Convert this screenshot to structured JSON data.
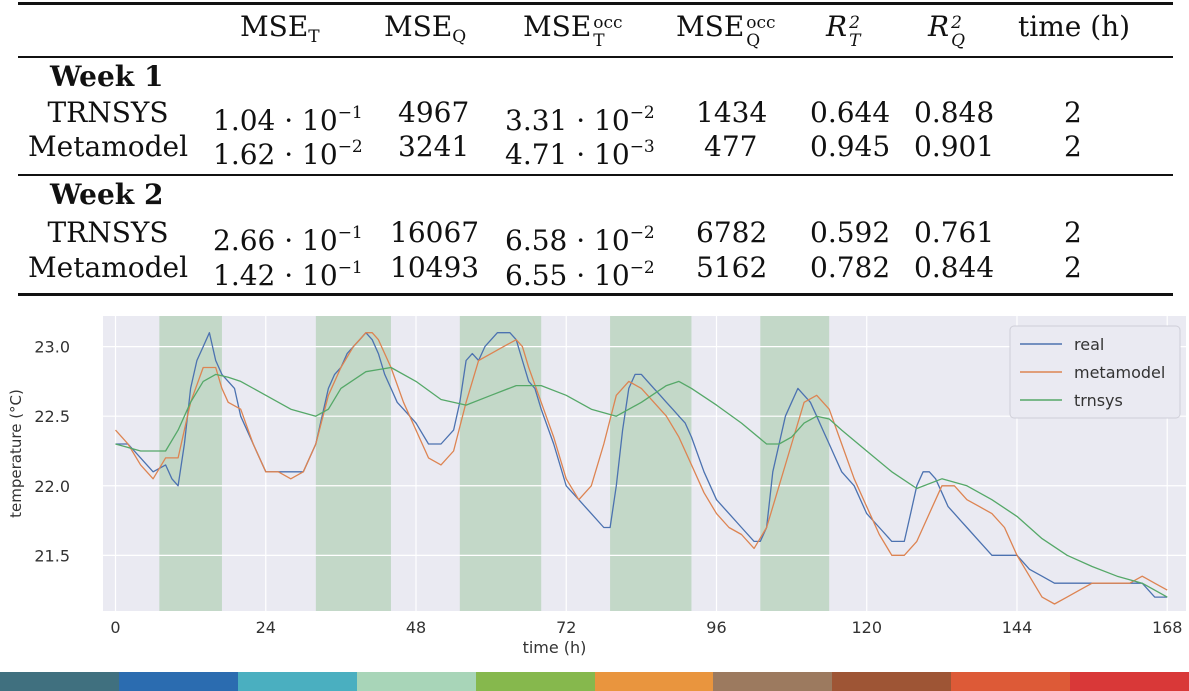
{
  "table": {
    "headers": [
      "MSE_T",
      "MSE_Q",
      "MSE_T^occ",
      "MSE_Q^occ",
      "R_T^2",
      "R_Q^2",
      "time (h)"
    ],
    "sections": [
      {
        "title": "Week 1",
        "rows": [
          {
            "label": "TRNSYS",
            "mse_t": "1.04 · 10",
            "mse_t_exp": "−1",
            "mse_q": "4967",
            "mse_t_occ": "3.31 · 10",
            "mse_t_occ_exp": "−2",
            "mse_q_occ": "1434",
            "r2_t": "0.644",
            "r2_q": "0.848",
            "time": "2"
          },
          {
            "label": "Metamodel",
            "mse_t": "1.62 · 10",
            "mse_t_exp": "−2",
            "mse_q": "3241",
            "mse_t_occ": "4.71 · 10",
            "mse_t_occ_exp": "−3",
            "mse_q_occ": "477",
            "r2_t": "0.945",
            "r2_q": "0.901",
            "time": "2"
          }
        ]
      },
      {
        "title": "Week 2",
        "rows": [
          {
            "label": "TRNSYS",
            "mse_t": "2.66 · 10",
            "mse_t_exp": "−1",
            "mse_q": "16067",
            "mse_t_occ": "6.58 · 10",
            "mse_t_occ_exp": "−2",
            "mse_q_occ": "6782",
            "r2_t": "0.592",
            "r2_q": "0.761",
            "time": "2"
          },
          {
            "label": "Metamodel",
            "mse_t": "1.42 · 10",
            "mse_t_exp": "−1",
            "mse_q": "10493",
            "mse_t_occ": "6.55 · 10",
            "mse_t_occ_exp": "−2",
            "mse_q_occ": "5162",
            "r2_t": "0.782",
            "r2_q": "0.844",
            "time": "2"
          }
        ]
      }
    ]
  },
  "chart_data": {
    "type": "line",
    "xlabel": "time (h)",
    "ylabel": "temperature (°C)",
    "xlim": [
      -2,
      171
    ],
    "ylim": [
      21.1,
      23.22
    ],
    "xticks": [
      0,
      24,
      48,
      72,
      96,
      120,
      144,
      168
    ],
    "yticks": [
      21.5,
      22.0,
      22.5,
      23.0
    ],
    "ytick_labels": [
      "21.5",
      "22.0",
      "22.5",
      "23.0"
    ],
    "grid": true,
    "legend_position": "top-right",
    "occupied_periods": [
      [
        7,
        17
      ],
      [
        32,
        44
      ],
      [
        55,
        68
      ],
      [
        79,
        92
      ],
      [
        103,
        114
      ]
    ],
    "colors": {
      "real": "#4c72b0",
      "metamodel": "#dd8452",
      "trnsys": "#55a868",
      "band": "#c3d8c8",
      "plot_bg": "#eaeaf2"
    },
    "series": [
      {
        "name": "real",
        "x": [
          0,
          2,
          4,
          6,
          8,
          9,
          10,
          11,
          12,
          13,
          14,
          15,
          16,
          17,
          18,
          19,
          20,
          22,
          24,
          26,
          28,
          30,
          32,
          33,
          34,
          35,
          36,
          37,
          38,
          39,
          40,
          41,
          42,
          43,
          44,
          45,
          46,
          48,
          50,
          52,
          54,
          55,
          56,
          57,
          58,
          59,
          60,
          61,
          62,
          63,
          64,
          65,
          66,
          67,
          68,
          70,
          72,
          74,
          76,
          78,
          79,
          80,
          81,
          82,
          83,
          84,
          85,
          86,
          87,
          88,
          89,
          90,
          91,
          92,
          94,
          96,
          98,
          100,
          102,
          103,
          104,
          105,
          106,
          107,
          108,
          109,
          110,
          111,
          112,
          113,
          114,
          115,
          116,
          118,
          120,
          122,
          124,
          126,
          127,
          128,
          129,
          130,
          131,
          132,
          133,
          134,
          135,
          136,
          138,
          140,
          142,
          144,
          146,
          148,
          150,
          152,
          154,
          156,
          158,
          160,
          162,
          164,
          166,
          168
        ],
        "values": [
          22.3,
          22.3,
          22.2,
          22.1,
          22.15,
          22.05,
          22.0,
          22.3,
          22.7,
          22.9,
          23.0,
          23.1,
          22.9,
          22.8,
          22.75,
          22.7,
          22.5,
          22.3,
          22.1,
          22.1,
          22.1,
          22.1,
          22.3,
          22.5,
          22.7,
          22.8,
          22.85,
          22.95,
          23.0,
          23.05,
          23.1,
          23.05,
          22.95,
          22.8,
          22.7,
          22.6,
          22.55,
          22.45,
          22.3,
          22.3,
          22.4,
          22.6,
          22.9,
          22.95,
          22.9,
          23.0,
          23.05,
          23.1,
          23.1,
          23.1,
          23.05,
          22.9,
          22.75,
          22.7,
          22.55,
          22.3,
          22.0,
          21.9,
          21.8,
          21.7,
          21.7,
          22.0,
          22.4,
          22.7,
          22.8,
          22.8,
          22.75,
          22.7,
          22.65,
          22.6,
          22.55,
          22.5,
          22.45,
          22.35,
          22.1,
          21.9,
          21.8,
          21.7,
          21.6,
          21.6,
          21.7,
          22.1,
          22.3,
          22.5,
          22.6,
          22.7,
          22.65,
          22.6,
          22.5,
          22.4,
          22.3,
          22.2,
          22.1,
          22.0,
          21.8,
          21.7,
          21.6,
          21.6,
          21.8,
          22.0,
          22.1,
          22.1,
          22.05,
          21.95,
          21.85,
          21.8,
          21.75,
          21.7,
          21.6,
          21.5,
          21.5,
          21.5,
          21.4,
          21.35,
          21.3,
          21.3,
          21.3,
          21.3,
          21.3,
          21.3,
          21.3,
          21.3,
          21.2,
          21.2
        ]
      },
      {
        "name": "metamodel",
        "x": [
          0,
          2,
          4,
          6,
          8,
          10,
          12,
          14,
          16,
          17,
          18,
          20,
          22,
          24,
          26,
          28,
          30,
          32,
          34,
          36,
          38,
          40,
          41,
          42,
          44,
          46,
          48,
          50,
          52,
          54,
          56,
          58,
          60,
          62,
          64,
          65,
          66,
          68,
          70,
          72,
          74,
          76,
          78,
          80,
          82,
          84,
          86,
          88,
          90,
          92,
          94,
          96,
          98,
          100,
          102,
          104,
          106,
          108,
          110,
          112,
          114,
          116,
          118,
          120,
          122,
          124,
          126,
          128,
          130,
          132,
          134,
          136,
          138,
          140,
          142,
          144,
          146,
          148,
          150,
          152,
          154,
          156,
          158,
          160,
          162,
          164,
          166,
          168
        ],
        "values": [
          22.4,
          22.3,
          22.15,
          22.05,
          22.2,
          22.2,
          22.6,
          22.85,
          22.85,
          22.7,
          22.6,
          22.55,
          22.3,
          22.1,
          22.1,
          22.05,
          22.1,
          22.3,
          22.65,
          22.85,
          23.0,
          23.1,
          23.1,
          23.05,
          22.85,
          22.6,
          22.4,
          22.2,
          22.15,
          22.25,
          22.6,
          22.9,
          22.95,
          23.0,
          23.05,
          23.0,
          22.85,
          22.6,
          22.35,
          22.05,
          21.9,
          22.0,
          22.3,
          22.65,
          22.75,
          22.7,
          22.6,
          22.5,
          22.35,
          22.15,
          21.95,
          21.8,
          21.7,
          21.65,
          21.55,
          21.7,
          22.0,
          22.3,
          22.6,
          22.65,
          22.55,
          22.3,
          22.05,
          21.85,
          21.65,
          21.5,
          21.5,
          21.6,
          21.8,
          22.0,
          22.0,
          21.9,
          21.85,
          21.8,
          21.7,
          21.5,
          21.35,
          21.2,
          21.15,
          21.2,
          21.25,
          21.3,
          21.3,
          21.3,
          21.3,
          21.35,
          21.3,
          21.25
        ]
      },
      {
        "name": "trnsys",
        "x": [
          0,
          4,
          8,
          10,
          12,
          14,
          16,
          18,
          20,
          24,
          28,
          32,
          34,
          36,
          40,
          44,
          48,
          52,
          56,
          60,
          64,
          68,
          72,
          76,
          80,
          84,
          88,
          90,
          92,
          96,
          100,
          104,
          106,
          108,
          110,
          112,
          114,
          116,
          120,
          124,
          128,
          132,
          136,
          140,
          144,
          148,
          152,
          156,
          160,
          164,
          168
        ],
        "values": [
          22.3,
          22.25,
          22.25,
          22.4,
          22.6,
          22.75,
          22.8,
          22.78,
          22.75,
          22.65,
          22.55,
          22.5,
          22.55,
          22.7,
          22.82,
          22.85,
          22.75,
          22.62,
          22.58,
          22.65,
          22.72,
          22.72,
          22.65,
          22.55,
          22.5,
          22.6,
          22.72,
          22.75,
          22.7,
          22.58,
          22.45,
          22.3,
          22.3,
          22.35,
          22.45,
          22.5,
          22.48,
          22.4,
          22.25,
          22.1,
          21.98,
          22.05,
          22.0,
          21.9,
          21.78,
          21.62,
          21.5,
          21.42,
          21.35,
          21.3,
          21.2
        ]
      }
    ]
  },
  "bottom_bar_colors": [
    "#40707f",
    "#2b6cb0",
    "#4aafc0",
    "#a8d5b8",
    "#86b84d",
    "#e9953e",
    "#9c7a5f",
    "#9e5535",
    "#dd5a37",
    "#d93838"
  ]
}
